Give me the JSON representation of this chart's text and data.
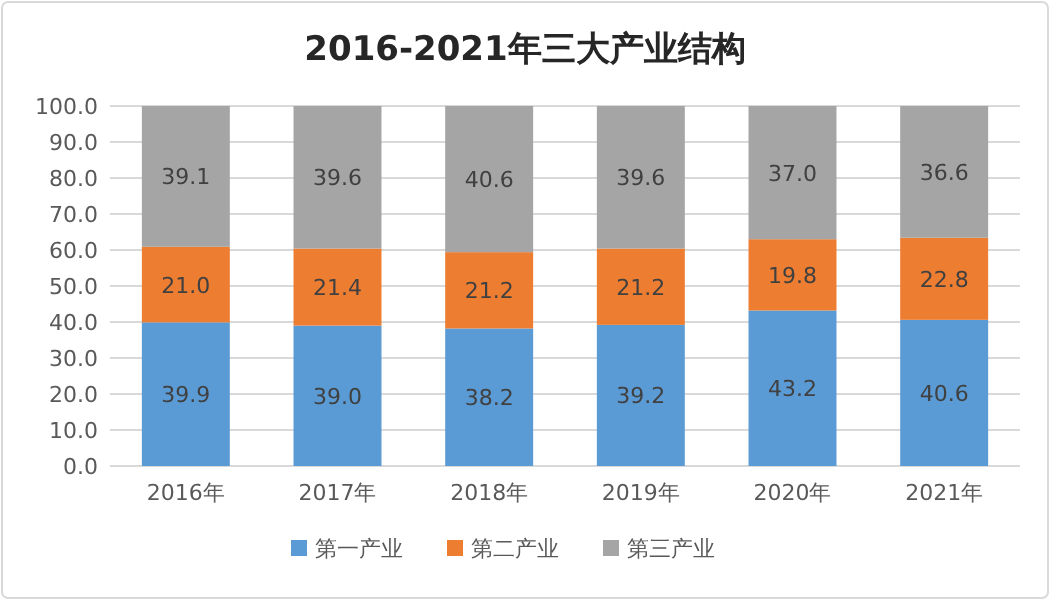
{
  "chart_data": {
    "type": "bar",
    "title": "2016-2021年三大产业结构",
    "stacked": true,
    "categories": [
      "2016年",
      "2017年",
      "2018年",
      "2019年",
      "2020年",
      "2021年"
    ],
    "series": [
      {
        "name": "第一产业",
        "color": "#5b9bd5",
        "values": [
          39.9,
          39.0,
          38.2,
          39.2,
          43.2,
          40.6
        ],
        "value_labels": [
          "39.9",
          "39.0",
          "38.2",
          "39.2",
          "43.2",
          "40.6"
        ]
      },
      {
        "name": "第二产业",
        "color": "#ed7d31",
        "values": [
          21.0,
          21.4,
          21.2,
          21.2,
          19.8,
          22.8
        ],
        "value_labels": [
          "21.0",
          "21.4",
          "21.2",
          "21.2",
          "19.8",
          "22.8"
        ]
      },
      {
        "name": "第三产业",
        "color": "#a5a5a5",
        "values": [
          39.1,
          39.6,
          40.6,
          39.6,
          37.0,
          36.6
        ],
        "value_labels": [
          "39.1",
          "39.6",
          "40.6",
          "39.6",
          "37.0",
          "36.6"
        ]
      }
    ],
    "ylim": [
      0,
      100
    ],
    "yticks": [
      {
        "value": 0,
        "label": "0.0"
      },
      {
        "value": 10,
        "label": "10.0"
      },
      {
        "value": 20,
        "label": "20.0"
      },
      {
        "value": 30,
        "label": "30.0"
      },
      {
        "value": 40,
        "label": "40.0"
      },
      {
        "value": 50,
        "label": "50.0"
      },
      {
        "value": 60,
        "label": "60.0"
      },
      {
        "value": 70,
        "label": "70.0"
      },
      {
        "value": 80,
        "label": "80.0"
      },
      {
        "value": 90,
        "label": "90.0"
      },
      {
        "value": 100,
        "label": "100.0"
      }
    ],
    "grid": "y",
    "legend": "bottom"
  }
}
